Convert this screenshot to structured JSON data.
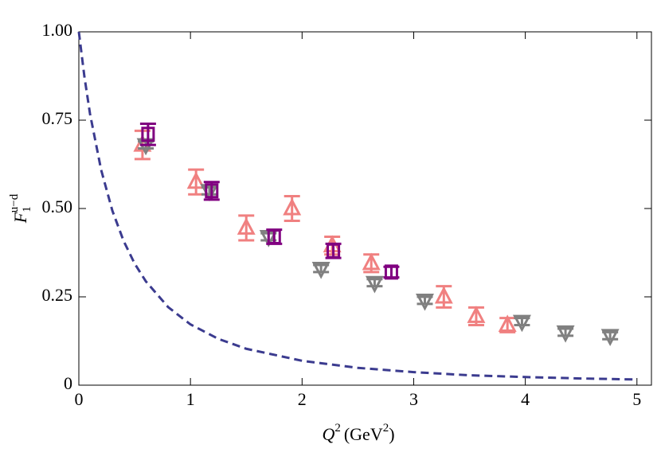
{
  "chart_data": {
    "type": "scatter",
    "x_label": {
      "main": "Q",
      "sup": "2",
      "unit": "(GeV",
      "unit_sup": "2",
      "close": ")"
    },
    "y_label": {
      "main": "F",
      "sub": "1",
      "sup": "u−d"
    },
    "xlim": [
      0,
      5.13
    ],
    "ylim": [
      0,
      1
    ],
    "xticks": [
      0,
      1,
      2,
      3,
      4,
      5
    ],
    "yticks": [
      0,
      0.25,
      {
        "value": 0.5,
        "label": "0.50"
      },
      0.75,
      {
        "value": 1,
        "label": "1.00"
      }
    ],
    "series": [
      {
        "color": "#f08080",
        "marker": "triangle-up",
        "x": [
          0.57,
          1.05,
          1.5,
          1.91,
          2.27,
          2.62,
          3.27,
          3.56,
          3.84
        ],
        "values": [
          0.68,
          0.575,
          0.445,
          0.5,
          0.395,
          0.345,
          0.25,
          0.195,
          0.17
        ],
        "errors": [
          0.04,
          0.035,
          0.035,
          0.035,
          0.025,
          0.025,
          0.03,
          0.025,
          0.02
        ]
      },
      {
        "color": "#808080",
        "marker": "triangle-down",
        "x": [
          0.6,
          1.17,
          1.7,
          2.17,
          2.65,
          3.1,
          3.97,
          4.36,
          4.76
        ],
        "values": [
          0.68,
          0.55,
          0.42,
          0.33,
          0.29,
          0.24,
          0.18,
          0.15,
          0.14
        ],
        "errors": [
          0.01,
          0.01,
          0.01,
          0.01,
          0.01,
          0.01,
          0.01,
          0.01,
          0.01
        ]
      },
      {
        "color": "#800080",
        "marker": "square",
        "x": [
          0.62,
          1.19,
          1.75,
          2.28,
          2.8
        ],
        "values": [
          0.71,
          0.55,
          0.42,
          0.38,
          0.32
        ],
        "errors": [
          0.03,
          0.025,
          0.02,
          0.02,
          0.015
        ]
      }
    ],
    "curve": {
      "color": "#3b3b8f",
      "dashed": true,
      "x": [
        0,
        0.05,
        0.1,
        0.2,
        0.3,
        0.4,
        0.5,
        0.6,
        0.8,
        1,
        1.25,
        1.5,
        2,
        2.5,
        3,
        3.5,
        4,
        4.5,
        5
      ],
      "values": [
        1,
        0.873,
        0.768,
        0.609,
        0.494,
        0.409,
        0.344,
        0.294,
        0.221,
        0.172,
        0.131,
        0.103,
        0.069,
        0.049,
        0.037,
        0.028,
        0.023,
        0.019,
        0.016
      ]
    }
  }
}
